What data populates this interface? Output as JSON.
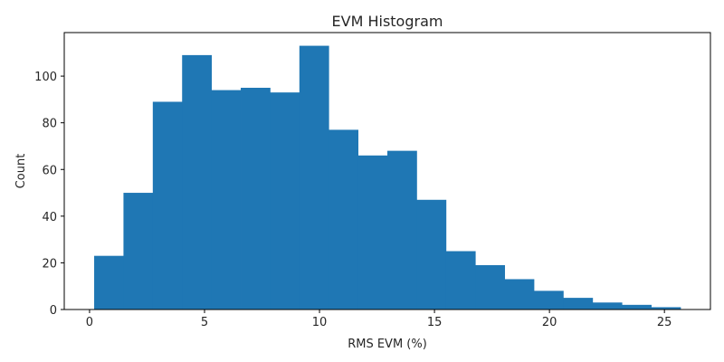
{
  "chart_data": {
    "type": "bar",
    "title": "EVM Histogram",
    "xlabel": "RMS EVM (%)",
    "ylabel": "Count",
    "bin_edges": [
      0.2,
      1.475,
      2.75,
      4.025,
      5.3,
      6.575,
      7.85,
      9.125,
      10.4,
      11.675,
      12.95,
      14.225,
      15.5,
      16.775,
      18.05,
      19.325,
      20.6,
      21.875,
      23.15,
      24.425,
      25.7
    ],
    "values": [
      23,
      50,
      89,
      109,
      94,
      95,
      93,
      113,
      77,
      66,
      68,
      47,
      25,
      19,
      13,
      8,
      5,
      3,
      2,
      1
    ],
    "xlim": [
      -1.1,
      27.0
    ],
    "ylim": [
      0,
      118.65
    ],
    "xticks": [
      0,
      5,
      10,
      15,
      20,
      25
    ],
    "yticks": [
      0,
      20,
      40,
      60,
      80,
      100
    ],
    "bar_color": "#1f77b4",
    "grid": false
  }
}
